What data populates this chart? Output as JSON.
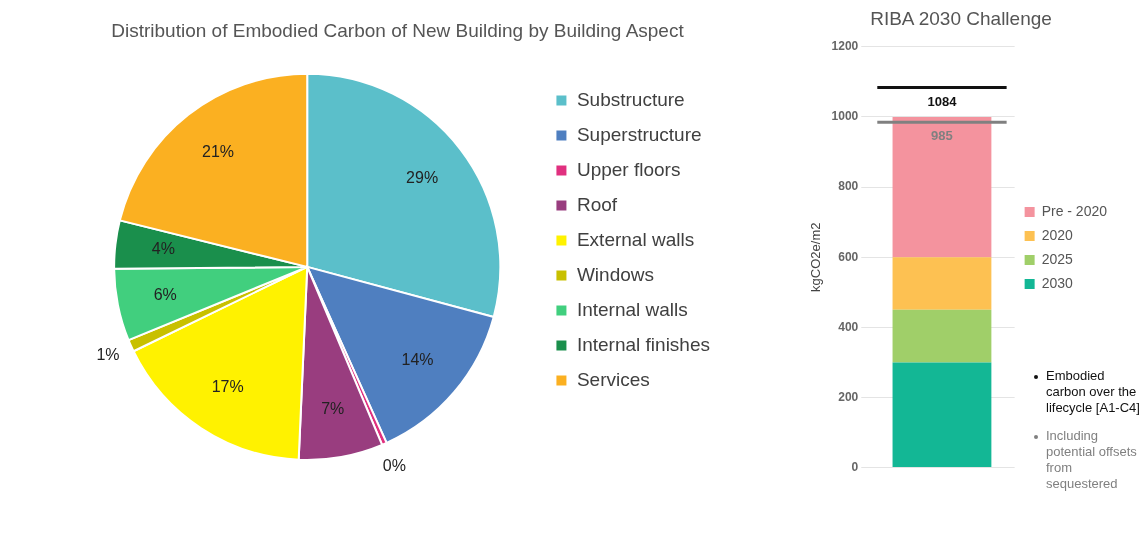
{
  "chart_data": [
    {
      "type": "pie",
      "title": "Distribution of Embodied Carbon of New Building by Building Aspect",
      "categories": [
        "Substructure",
        "Superstructure",
        "Upper floors",
        "Roof",
        "External walls",
        "Windows",
        "Internal walls",
        "Internal finishes",
        "Services"
      ],
      "values": [
        29,
        14,
        0.4,
        7,
        17,
        1,
        6,
        4,
        21
      ],
      "value_labels": [
        "29%",
        "14%",
        "0%",
        "7%",
        "17%",
        "1%",
        "6%",
        "4%",
        "21%"
      ],
      "colors": [
        "#5bbfca",
        "#4f7fc0",
        "#e0307f",
        "#993d7f",
        "#fff200",
        "#c8c000",
        "#41cf7e",
        "#1a8f4c",
        "#fbb021"
      ],
      "legend": "right"
    },
    {
      "type": "bar",
      "stacked": true,
      "title": "RIBA 2030 Challenge",
      "ylabel": "kgCO2e/m2",
      "categories": [
        null
      ],
      "series": [
        {
          "name": "2030",
          "color": "#13b795",
          "values": [
            300
          ]
        },
        {
          "name": "2025",
          "color": "#a0cf69",
          "values": [
            150
          ]
        },
        {
          "name": "2020",
          "color": "#fdc152",
          "values": [
            150
          ]
        },
        {
          "name": "Pre - 2020",
          "color": "#f4939e",
          "values": [
            400
          ]
        }
      ],
      "ylim": [
        0,
        1200
      ],
      "yticks": [
        0,
        200,
        400,
        600,
        800,
        1000,
        1200
      ],
      "grid": "y",
      "legend": "right",
      "ref_lines": [
        {
          "axis": "y",
          "value": 1084,
          "label": "1084",
          "color": "#111111"
        },
        {
          "axis": "y",
          "value": 985,
          "label": "985",
          "color": "#808080"
        }
      ],
      "annotations": [
        "Embodied carbon over the lifecycle [A1-C4]",
        "Including potential offsets from sequestered"
      ]
    }
  ]
}
